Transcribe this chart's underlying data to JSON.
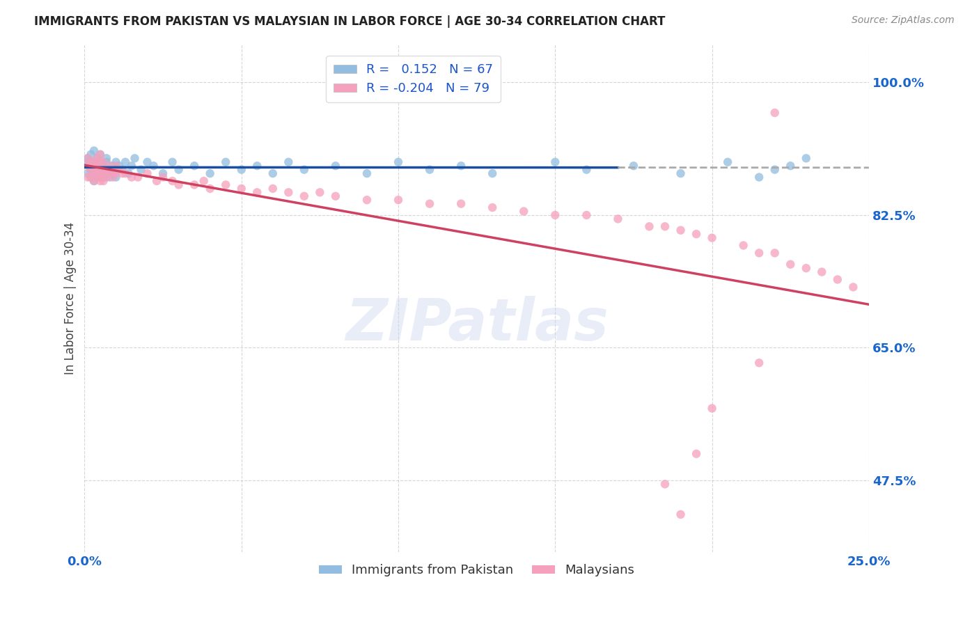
{
  "title": "IMMIGRANTS FROM PAKISTAN VS MALAYSIAN IN LABOR FORCE | AGE 30-34 CORRELATION CHART",
  "source": "Source: ZipAtlas.com",
  "ylabel": "In Labor Force | Age 30-34",
  "xlim": [
    0.0,
    0.25
  ],
  "ylim": [
    0.38,
    1.05
  ],
  "watermark": "ZIPatlas",
  "series1_color": "#92bde0",
  "series2_color": "#f5a0bc",
  "series1_edge": "#6a9ec8",
  "series2_edge": "#e07090",
  "trendline1_color": "#1a4fa0",
  "trendline2_color": "#d04060",
  "dashed_line_color": "#aaaaaa",
  "background_color": "#ffffff",
  "grid_color": "#cccccc",
  "title_color": "#222222",
  "axis_label_color": "#1a66cc",
  "marker_size": 80,
  "pak_x": [
    0.001,
    0.001,
    0.001,
    0.002,
    0.002,
    0.002,
    0.002,
    0.003,
    0.003,
    0.003,
    0.003,
    0.003,
    0.004,
    0.004,
    0.004,
    0.004,
    0.005,
    0.005,
    0.005,
    0.005,
    0.006,
    0.006,
    0.006,
    0.007,
    0.007,
    0.007,
    0.008,
    0.008,
    0.009,
    0.009,
    0.01,
    0.01,
    0.011,
    0.012,
    0.013,
    0.014,
    0.015,
    0.016,
    0.018,
    0.02,
    0.022,
    0.025,
    0.028,
    0.03,
    0.035,
    0.04,
    0.045,
    0.05,
    0.055,
    0.06,
    0.065,
    0.07,
    0.08,
    0.09,
    0.1,
    0.11,
    0.12,
    0.13,
    0.15,
    0.16,
    0.175,
    0.19,
    0.205,
    0.215,
    0.22,
    0.225,
    0.23
  ],
  "pak_y": [
    0.895,
    0.88,
    0.9,
    0.885,
    0.895,
    0.875,
    0.905,
    0.89,
    0.88,
    0.87,
    0.895,
    0.91,
    0.885,
    0.875,
    0.9,
    0.89,
    0.88,
    0.895,
    0.875,
    0.905,
    0.89,
    0.885,
    0.875,
    0.9,
    0.88,
    0.895,
    0.885,
    0.875,
    0.89,
    0.88,
    0.895,
    0.875,
    0.89,
    0.885,
    0.895,
    0.88,
    0.89,
    0.9,
    0.885,
    0.895,
    0.89,
    0.88,
    0.895,
    0.885,
    0.89,
    0.88,
    0.895,
    0.885,
    0.89,
    0.88,
    0.895,
    0.885,
    0.89,
    0.88,
    0.895,
    0.885,
    0.89,
    0.88,
    0.895,
    0.885,
    0.89,
    0.88,
    0.895,
    0.875,
    0.885,
    0.89,
    0.9
  ],
  "mal_x": [
    0.001,
    0.001,
    0.001,
    0.002,
    0.002,
    0.002,
    0.003,
    0.003,
    0.003,
    0.003,
    0.004,
    0.004,
    0.004,
    0.005,
    0.005,
    0.005,
    0.005,
    0.005,
    0.005,
    0.006,
    0.006,
    0.006,
    0.007,
    0.007,
    0.008,
    0.008,
    0.009,
    0.009,
    0.01,
    0.01,
    0.011,
    0.012,
    0.013,
    0.015,
    0.017,
    0.02,
    0.023,
    0.025,
    0.028,
    0.03,
    0.035,
    0.038,
    0.04,
    0.045,
    0.05,
    0.055,
    0.06,
    0.065,
    0.07,
    0.075,
    0.08,
    0.09,
    0.1,
    0.11,
    0.12,
    0.13,
    0.14,
    0.15,
    0.16,
    0.17,
    0.18,
    0.185,
    0.19,
    0.195,
    0.2,
    0.21,
    0.215,
    0.22,
    0.225,
    0.23,
    0.235,
    0.24,
    0.245,
    0.22,
    0.215,
    0.2,
    0.195,
    0.19,
    0.185
  ],
  "mal_y": [
    0.89,
    0.875,
    0.9,
    0.885,
    0.895,
    0.875,
    0.89,
    0.88,
    0.895,
    0.87,
    0.885,
    0.875,
    0.9,
    0.89,
    0.88,
    0.87,
    0.895,
    0.875,
    0.905,
    0.88,
    0.895,
    0.87,
    0.885,
    0.875,
    0.89,
    0.88,
    0.885,
    0.875,
    0.89,
    0.88,
    0.885,
    0.88,
    0.88,
    0.875,
    0.875,
    0.88,
    0.87,
    0.875,
    0.87,
    0.865,
    0.865,
    0.87,
    0.86,
    0.865,
    0.86,
    0.855,
    0.86,
    0.855,
    0.85,
    0.855,
    0.85,
    0.845,
    0.845,
    0.84,
    0.84,
    0.835,
    0.83,
    0.825,
    0.825,
    0.82,
    0.81,
    0.81,
    0.805,
    0.8,
    0.795,
    0.785,
    0.775,
    0.775,
    0.76,
    0.755,
    0.75,
    0.74,
    0.73,
    0.96,
    0.63,
    0.57,
    0.51,
    0.43,
    0.47
  ]
}
